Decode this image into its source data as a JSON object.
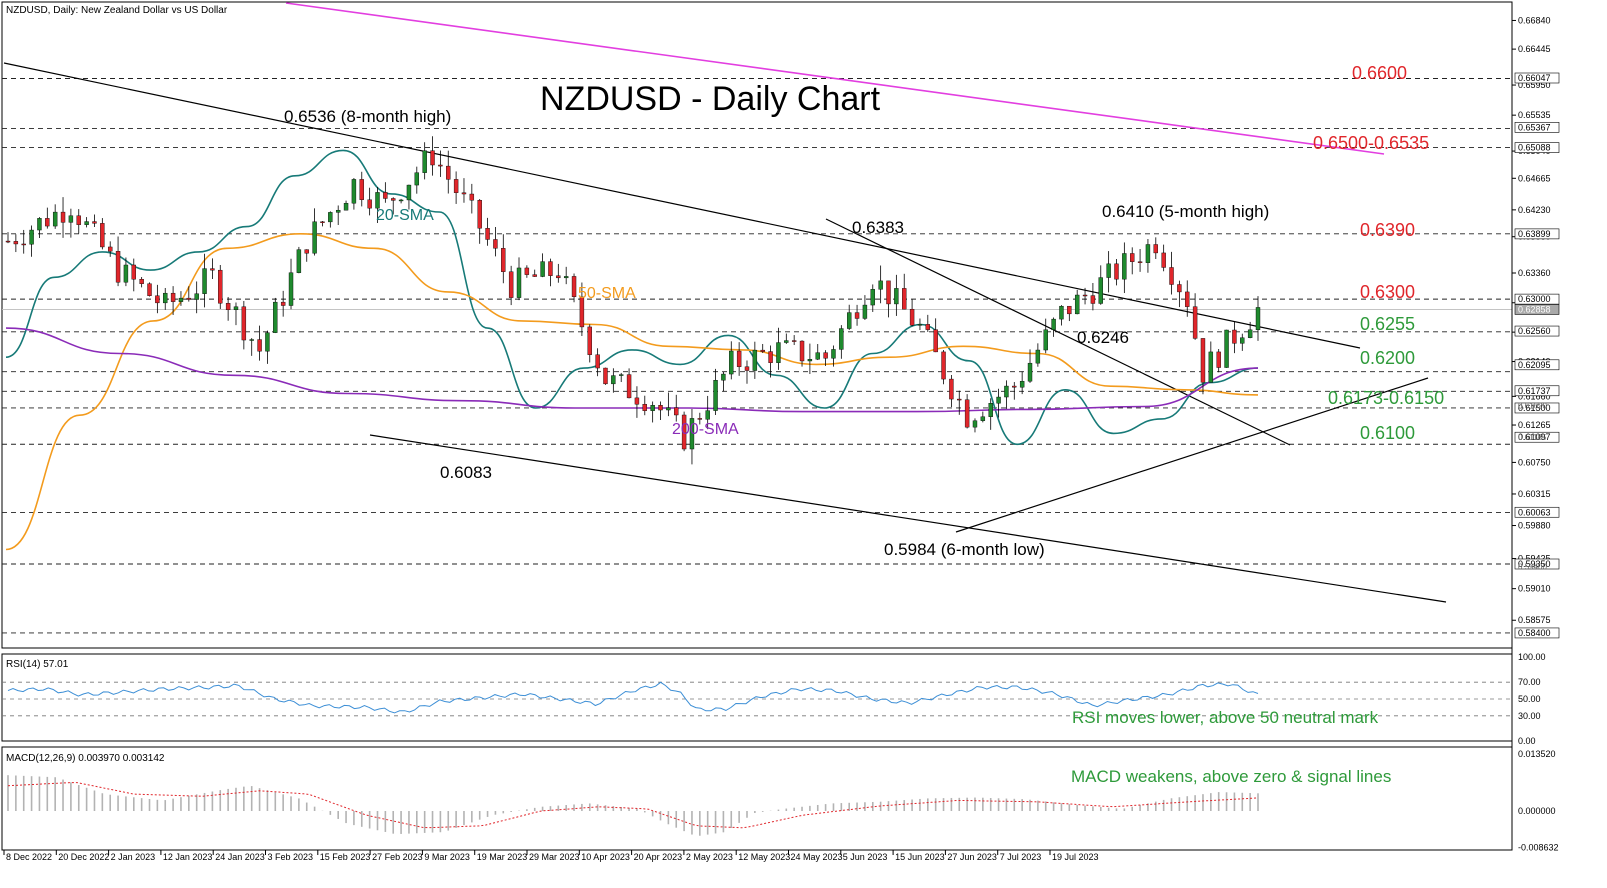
{
  "header": {
    "instrument_label": "NZDUSD, Daily:  New Zealand Dollar vs US Dollar",
    "title": "NZDUSD - Daily Chart"
  },
  "colors": {
    "bull": "#1f8a2e",
    "bear": "#e0262b",
    "sma20": "#177a78",
    "sma50": "#f39b1d",
    "sma200": "#8a2bb8",
    "magenta_line": "#e23ee0",
    "red_text": "#e0262b",
    "green_text": "#2e9a3a",
    "rsi": "#3d8fd6",
    "macd_hist": "#b3b3b3",
    "macd_signal": "#e0262b",
    "current_price_box": "#a9a9a9"
  },
  "price_axis": {
    "ticks": [
      "0.66840",
      "0.66445",
      "0.65950",
      "0.65535",
      "0.65040",
      "0.64665",
      "0.64230",
      "0.63860",
      "0.63360",
      "0.62950",
      "0.62545",
      "0.62140",
      "0.61660",
      "0.61265",
      "0.60750",
      "0.60315",
      "0.59880",
      "0.59425",
      "0.59010",
      "0.58575"
    ],
    "boxed": [
      "0.66047",
      "0.65367",
      "0.65088",
      "0.63899",
      "0.63000",
      "0.62858",
      "0.62560",
      "0.62095",
      "0.61737",
      "0.61500",
      "0.61097",
      "0.60063",
      "0.59350",
      "0.58400"
    ],
    "boxed_low_overlap": [
      "0.61620",
      "0.61185",
      "0.59400"
    ]
  },
  "levels": {
    "l6600": "0.6600",
    "l6500": "0.6500-0.6535",
    "l6390": "0.6390",
    "l6300": "0.6300",
    "l6255": "0.6255",
    "l6200": "0.6200",
    "l6173": "0.6173-0.6150",
    "l6100": "0.6100"
  },
  "annotations": {
    "high_8m": "0.6536 (8-month high)",
    "p6383": "0.6383",
    "high_5m": "0.6410 (5-month high)",
    "p6246": "0.6246",
    "p6083": "0.6083",
    "low_6m": "0.5984 (6-month low)",
    "sma20": "20-SMA",
    "sma50": "50-SMA",
    "sma200": "200-SMA"
  },
  "rsi_panel": {
    "label": "RSI(14) 57.01",
    "ticks": [
      "100.00",
      "70.00",
      "50.00",
      "30.00",
      "0.00"
    ],
    "comment": "RSI moves lower, above 50 neutral mark"
  },
  "macd_panel": {
    "label": "MACD(12,26,9) 0.003970 0.003142",
    "ticks": [
      "0.013520",
      "0.000000",
      "-0.008632"
    ],
    "comment": "MACD weakens, above zero & signal lines"
  },
  "date_axis": {
    "labels": [
      "8 Dec 2022",
      "20 Dec 2022",
      "2 Jan 2023",
      "12 Jan 2023",
      "24 Jan 2023",
      "3 Feb 2023",
      "15 Feb 2023",
      "27 Feb 2023",
      "9 Mar 2023",
      "19 Mar 2023",
      "29 Mar 2023",
      "10 Apr 2023",
      "20 Apr 2023",
      "2 May 2023",
      "12 May 2023",
      "24 May 2023",
      "5 Jun 2023",
      "15 Jun 2023",
      "27 Jun 2023",
      "7 Jul 2023",
      "19 Jul 2023"
    ]
  },
  "chart_data": {
    "type": "candlestick",
    "title": "NZDUSD - Daily Chart",
    "timeframe": "Daily",
    "x_range": [
      "2022-12-08",
      "2023-07-20"
    ],
    "y_range": [
      0.584,
      0.6684
    ],
    "key_levels": [
      0.66,
      0.6535,
      0.65,
      0.639,
      0.63,
      0.6255,
      0.62,
      0.6173,
      0.615,
      0.61
    ],
    "last_price": 0.62858,
    "swing_points": [
      {
        "date": "2023-02-02",
        "value": 0.6536,
        "label": "0.6536 (8-month high)"
      },
      {
        "date": "2023-03-08",
        "value": 0.6083,
        "label": "0.6083"
      },
      {
        "date": "2023-05-10",
        "value": 0.6383,
        "label": "0.6383"
      },
      {
        "date": "2023-05-31",
        "value": 0.5984,
        "label": "0.5984 (6-month low)"
      },
      {
        "date": "2023-06-16",
        "value": 0.6246,
        "label": "0.6246"
      },
      {
        "date": "2023-07-13",
        "value": 0.641,
        "label": "0.6410 (5-month high)"
      }
    ],
    "series": [
      {
        "name": "20-SMA",
        "values": [
          0.622,
          0.633,
          0.6365,
          0.634,
          0.6365,
          0.64,
          0.647,
          0.6505,
          0.6445,
          0.642,
          0.626,
          0.615,
          0.6205,
          0.623,
          0.621,
          0.625,
          0.6195,
          0.615,
          0.6225,
          0.6265,
          0.6215,
          0.61,
          0.6175,
          0.6115,
          0.6135,
          0.6185,
          0.6205
        ]
      },
      {
        "name": "50-SMA",
        "values": [
          0.5955,
          0.614,
          0.627,
          0.637,
          0.639,
          0.637,
          0.631,
          0.627,
          0.6265,
          0.6235,
          0.623,
          0.621,
          0.622,
          0.6235,
          0.6225,
          0.618,
          0.6175,
          0.6168
        ]
      },
      {
        "name": "200-SMA",
        "values": [
          0.626,
          0.6225,
          0.6195,
          0.617,
          0.616,
          0.615,
          0.615,
          0.6145,
          0.6145,
          0.6148,
          0.6152,
          0.6205
        ]
      }
    ],
    "rsi": {
      "period": 14,
      "last": 57.01,
      "levels": [
        70,
        50,
        30
      ]
    },
    "macd": {
      "params": [
        12,
        26,
        9
      ],
      "macd": 0.00397,
      "signal": 0.003142
    }
  }
}
